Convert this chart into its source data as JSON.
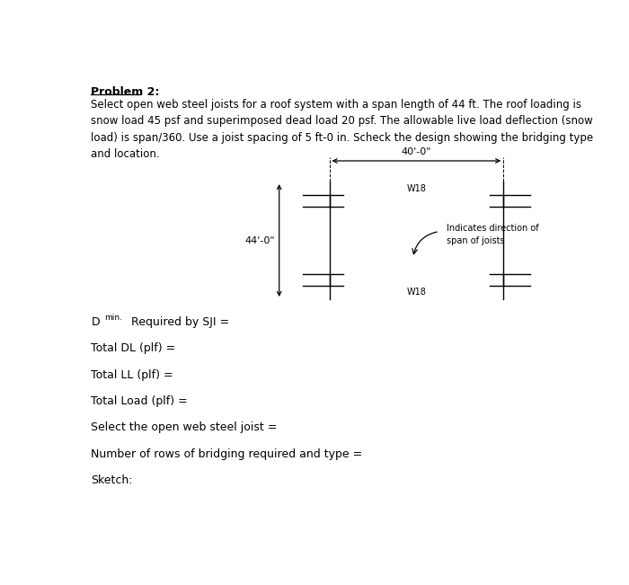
{
  "title": "Problem 2:",
  "problem_text": "Select open web steel joists for a roof system with a span length of 44 ft. The roof loading is\nsnow load 45 psf and superimposed dead load 20 psf. The allowable live load deflection (snow\nload) is span/360. Use a joist spacing of 5 ft-0 in. Scheck the design showing the bridging type\nand location.",
  "dim_horizontal": "40'-0\"",
  "dim_vertical": "44'-0\"",
  "beam_label": "W18",
  "arrow_label": "Indicates direction of\nspan of joists",
  "lines": [
    "Total DL (plf) =",
    "Total LL (plf) =",
    "Total Load (plf) =",
    "Select the open web steel joist =",
    "Number of rows of bridging required and type =",
    "Sketch:"
  ],
  "bg_color": "#ffffff",
  "text_color": "#000000",
  "line_color": "#000000"
}
